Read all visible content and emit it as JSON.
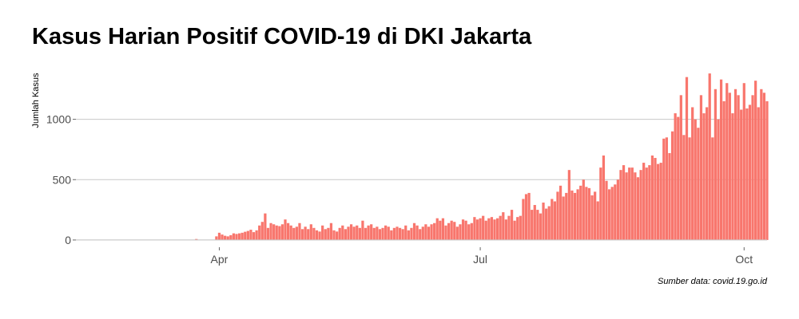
{
  "chart_data": {
    "type": "bar",
    "title": "Kasus Harian Positif COVID-19 di DKI Jakarta",
    "ylabel": "Jumlah Kasus",
    "xlabel": "",
    "caption": "Sumber data: covid.19.go.id",
    "bar_color": "#f8766d",
    "grid_color": "#c8c8c8",
    "grid": true,
    "ylim": [
      -60,
      1460
    ],
    "yticks": [
      0,
      500,
      1000
    ],
    "yticklabels": [
      "0",
      "500",
      "1000"
    ],
    "xlim": [
      "2020-02-11",
      "2020-10-09"
    ],
    "xticks": [
      "2020-04-01",
      "2020-07-01",
      "2020-10-01"
    ],
    "xticklabels": [
      "Apr",
      "Jul",
      "Oct"
    ],
    "start_date": "2020-03-01",
    "values": [
      0,
      0,
      0,
      0,
      0,
      0,
      0,
      0,
      0,
      0,
      0,
      0,
      0,
      0,
      0,
      0,
      0,
      0,
      0,
      0,
      0,
      0,
      0,
      8,
      0,
      0,
      0,
      0,
      0,
      0,
      30,
      60,
      45,
      35,
      30,
      40,
      55,
      50,
      55,
      60,
      68,
      75,
      85,
      65,
      80,
      120,
      150,
      220,
      100,
      140,
      130,
      120,
      115,
      130,
      170,
      140,
      120,
      100,
      110,
      140,
      90,
      110,
      90,
      130,
      100,
      80,
      70,
      120,
      90,
      100,
      140,
      80,
      70,
      100,
      120,
      90,
      110,
      130,
      110,
      120,
      100,
      160,
      100,
      120,
      130,
      100,
      110,
      90,
      100,
      120,
      110,
      80,
      100,
      110,
      100,
      90,
      120,
      80,
      100,
      140,
      120,
      90,
      110,
      130,
      110,
      130,
      140,
      180,
      160,
      180,
      120,
      140,
      160,
      150,
      110,
      130,
      170,
      160,
      130,
      140,
      190,
      170,
      180,
      200,
      160,
      180,
      190,
      170,
      180,
      200,
      230,
      170,
      200,
      250,
      160,
      190,
      200,
      340,
      380,
      390,
      250,
      290,
      250,
      220,
      310,
      260,
      280,
      340,
      320,
      400,
      450,
      360,
      390,
      580,
      410,
      390,
      420,
      450,
      500,
      440,
      430,
      370,
      400,
      320,
      600,
      700,
      490,
      420,
      440,
      460,
      500,
      580,
      620,
      560,
      600,
      600,
      560,
      520,
      580,
      640,
      600,
      620,
      700,
      680,
      630,
      640,
      840,
      850,
      720,
      900,
      1050,
      1020,
      1200,
      870,
      1350,
      850,
      1100,
      1000,
      930,
      1200,
      1050,
      1100,
      1380,
      850,
      1250,
      1000,
      1330,
      1150,
      1300,
      1220,
      1050,
      1250,
      1200,
      1080,
      1300,
      1090,
      1120,
      1200,
      1320,
      1100,
      1250,
      1220,
      1150
    ]
  }
}
